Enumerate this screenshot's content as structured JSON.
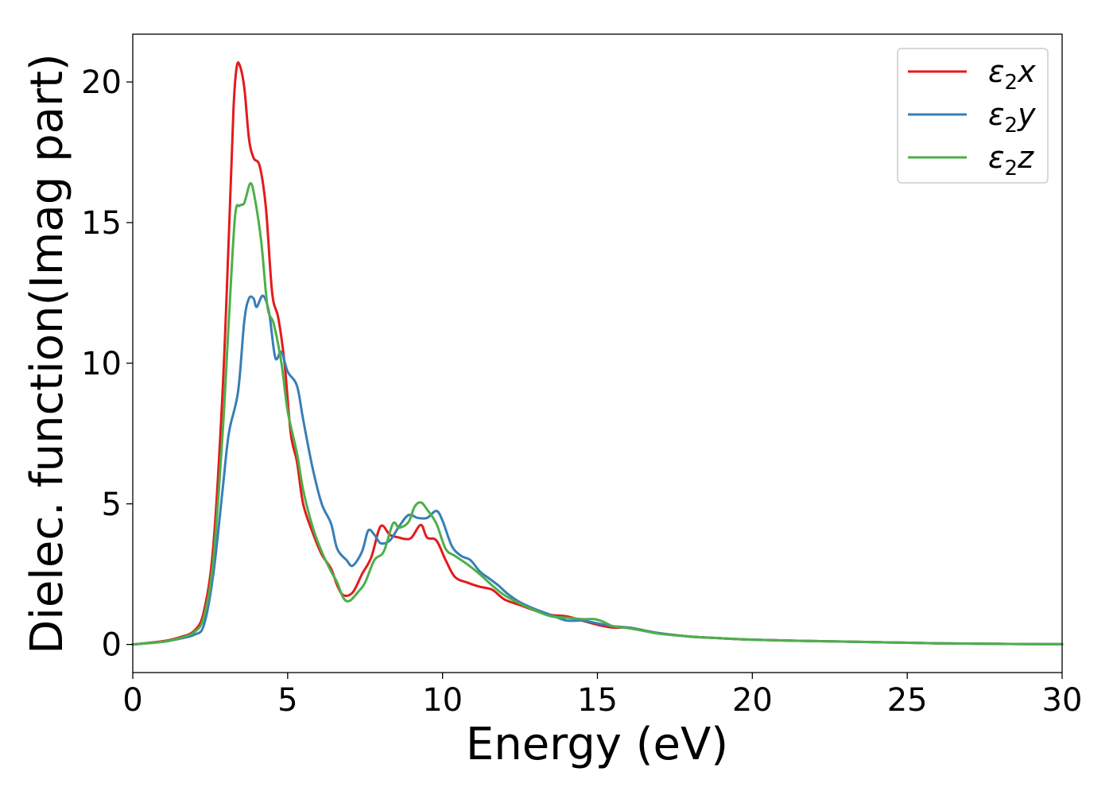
{
  "chart_data": {
    "type": "line",
    "title": "",
    "xlabel": "Energy (eV)",
    "ylabel": "Dielec. function(Imag part)",
    "xlim": [
      0,
      30
    ],
    "ylim": [
      -1,
      21.7
    ],
    "xticks": [
      "0",
      "5",
      "10",
      "15",
      "20",
      "25",
      "30"
    ],
    "yticks": [
      "0",
      "5",
      "10",
      "15",
      "20"
    ],
    "grid": false,
    "legend_position": "top-right",
    "series": [
      {
        "name": "ε2x",
        "label_main": "ε",
        "label_sub": "2",
        "label_axis": "x",
        "color": "#e41a1c",
        "points": [
          [
            0,
            0
          ],
          [
            1,
            0.12
          ],
          [
            1.5,
            0.25
          ],
          [
            2,
            0.5
          ],
          [
            2.3,
            1.2
          ],
          [
            2.6,
            3.5
          ],
          [
            2.9,
            9
          ],
          [
            3.1,
            14.5
          ],
          [
            3.25,
            19
          ],
          [
            3.35,
            20.5
          ],
          [
            3.45,
            20.6
          ],
          [
            3.6,
            19.8
          ],
          [
            3.75,
            18
          ],
          [
            3.9,
            17.3
          ],
          [
            4.1,
            17
          ],
          [
            4.3,
            15.5
          ],
          [
            4.5,
            12.5
          ],
          [
            4.7,
            11.6
          ],
          [
            4.9,
            10
          ],
          [
            5.1,
            7.5
          ],
          [
            5.3,
            6.5
          ],
          [
            5.5,
            5
          ],
          [
            5.8,
            4
          ],
          [
            6.1,
            3.2
          ],
          [
            6.4,
            2.7
          ],
          [
            6.6,
            2.1
          ],
          [
            6.8,
            1.75
          ],
          [
            7.1,
            1.85
          ],
          [
            7.4,
            2.5
          ],
          [
            7.7,
            3.1
          ],
          [
            8.0,
            4.2
          ],
          [
            8.3,
            3.9
          ],
          [
            8.6,
            3.8
          ],
          [
            8.8,
            3.75
          ],
          [
            9.0,
            3.8
          ],
          [
            9.3,
            4.25
          ],
          [
            9.5,
            3.8
          ],
          [
            9.8,
            3.7
          ],
          [
            10.1,
            3.0
          ],
          [
            10.4,
            2.4
          ],
          [
            10.8,
            2.2
          ],
          [
            11.2,
            2.05
          ],
          [
            11.6,
            1.95
          ],
          [
            12.0,
            1.6
          ],
          [
            12.5,
            1.4
          ],
          [
            13.0,
            1.2
          ],
          [
            13.5,
            1.05
          ],
          [
            14.0,
            1.0
          ],
          [
            14.5,
            0.85
          ],
          [
            15.0,
            0.7
          ],
          [
            15.5,
            0.6
          ],
          [
            16.0,
            0.6
          ],
          [
            16.5,
            0.5
          ],
          [
            17.0,
            0.4
          ],
          [
            18.0,
            0.28
          ],
          [
            19.0,
            0.22
          ],
          [
            20.0,
            0.17
          ],
          [
            22.0,
            0.12
          ],
          [
            24.0,
            0.08
          ],
          [
            26.0,
            0.04
          ],
          [
            28.0,
            0.02
          ],
          [
            30.0,
            0.01
          ]
        ]
      },
      {
        "name": "ε2y",
        "label_main": "ε",
        "label_sub": "2",
        "label_axis": "y",
        "color": "#377eb8",
        "points": [
          [
            0,
            0
          ],
          [
            1,
            0.1
          ],
          [
            1.5,
            0.2
          ],
          [
            2,
            0.35
          ],
          [
            2.3,
            0.7
          ],
          [
            2.6,
            2.5
          ],
          [
            2.9,
            5.5
          ],
          [
            3.1,
            7.5
          ],
          [
            3.4,
            9.0
          ],
          [
            3.6,
            11.5
          ],
          [
            3.75,
            12.3
          ],
          [
            3.9,
            12.3
          ],
          [
            4.0,
            12.0
          ],
          [
            4.2,
            12.4
          ],
          [
            4.4,
            11.8
          ],
          [
            4.6,
            10.2
          ],
          [
            4.8,
            10.4
          ],
          [
            5.0,
            9.7
          ],
          [
            5.3,
            9.2
          ],
          [
            5.5,
            8.0
          ],
          [
            5.8,
            6.3
          ],
          [
            6.1,
            5.0
          ],
          [
            6.4,
            4.3
          ],
          [
            6.6,
            3.4
          ],
          [
            6.9,
            3.0
          ],
          [
            7.1,
            2.8
          ],
          [
            7.4,
            3.3
          ],
          [
            7.6,
            4.05
          ],
          [
            7.8,
            3.9
          ],
          [
            8.0,
            3.6
          ],
          [
            8.3,
            3.7
          ],
          [
            8.6,
            4.2
          ],
          [
            8.9,
            4.6
          ],
          [
            9.2,
            4.5
          ],
          [
            9.5,
            4.5
          ],
          [
            9.8,
            4.75
          ],
          [
            10.0,
            4.4
          ],
          [
            10.3,
            3.5
          ],
          [
            10.6,
            3.15
          ],
          [
            10.9,
            3.0
          ],
          [
            11.2,
            2.6
          ],
          [
            11.5,
            2.35
          ],
          [
            11.8,
            2.1
          ],
          [
            12.1,
            1.8
          ],
          [
            12.5,
            1.5
          ],
          [
            13.0,
            1.25
          ],
          [
            13.5,
            1.05
          ],
          [
            14.0,
            0.85
          ],
          [
            14.5,
            0.85
          ],
          [
            15.0,
            0.75
          ],
          [
            15.5,
            0.65
          ],
          [
            16.0,
            0.6
          ],
          [
            16.5,
            0.5
          ],
          [
            17.0,
            0.4
          ],
          [
            18.0,
            0.28
          ],
          [
            19.0,
            0.22
          ],
          [
            20.0,
            0.17
          ],
          [
            22.0,
            0.12
          ],
          [
            24.0,
            0.08
          ],
          [
            26.0,
            0.04
          ],
          [
            28.0,
            0.02
          ],
          [
            30.0,
            0.01
          ]
        ]
      },
      {
        "name": "ε2z",
        "label_main": "ε",
        "label_sub": "2",
        "label_axis": "z",
        "color": "#4daf4a",
        "points": [
          [
            0,
            0
          ],
          [
            1,
            0.1
          ],
          [
            1.5,
            0.22
          ],
          [
            2,
            0.45
          ],
          [
            2.3,
            1.0
          ],
          [
            2.6,
            3.0
          ],
          [
            2.9,
            7.5
          ],
          [
            3.1,
            11.5
          ],
          [
            3.3,
            15.2
          ],
          [
            3.45,
            15.6
          ],
          [
            3.6,
            15.7
          ],
          [
            3.8,
            16.4
          ],
          [
            3.95,
            15.8
          ],
          [
            4.15,
            14.3
          ],
          [
            4.35,
            12.0
          ],
          [
            4.55,
            11.4
          ],
          [
            4.8,
            10.0
          ],
          [
            5.0,
            8.3
          ],
          [
            5.3,
            6.8
          ],
          [
            5.5,
            5.5
          ],
          [
            5.8,
            4.2
          ],
          [
            6.1,
            3.3
          ],
          [
            6.4,
            2.6
          ],
          [
            6.6,
            2.2
          ],
          [
            6.8,
            1.65
          ],
          [
            7.0,
            1.55
          ],
          [
            7.3,
            1.9
          ],
          [
            7.5,
            2.2
          ],
          [
            7.8,
            3.0
          ],
          [
            8.1,
            3.3
          ],
          [
            8.4,
            4.3
          ],
          [
            8.6,
            4.15
          ],
          [
            8.9,
            4.35
          ],
          [
            9.1,
            4.9
          ],
          [
            9.3,
            5.05
          ],
          [
            9.5,
            4.8
          ],
          [
            9.8,
            4.3
          ],
          [
            10.1,
            3.4
          ],
          [
            10.4,
            3.15
          ],
          [
            10.8,
            2.85
          ],
          [
            11.2,
            2.5
          ],
          [
            11.6,
            2.1
          ],
          [
            12.0,
            1.75
          ],
          [
            12.5,
            1.45
          ],
          [
            13.0,
            1.2
          ],
          [
            13.5,
            1.0
          ],
          [
            14.0,
            0.95
          ],
          [
            14.5,
            0.9
          ],
          [
            14.9,
            0.9
          ],
          [
            15.2,
            0.8
          ],
          [
            15.5,
            0.65
          ],
          [
            16.0,
            0.58
          ],
          [
            16.5,
            0.48
          ],
          [
            17.0,
            0.38
          ],
          [
            18.0,
            0.28
          ],
          [
            19.0,
            0.22
          ],
          [
            20.0,
            0.17
          ],
          [
            22.0,
            0.12
          ],
          [
            24.0,
            0.08
          ],
          [
            26.0,
            0.04
          ],
          [
            28.0,
            0.02
          ],
          [
            30.0,
            0.01
          ]
        ]
      }
    ]
  }
}
